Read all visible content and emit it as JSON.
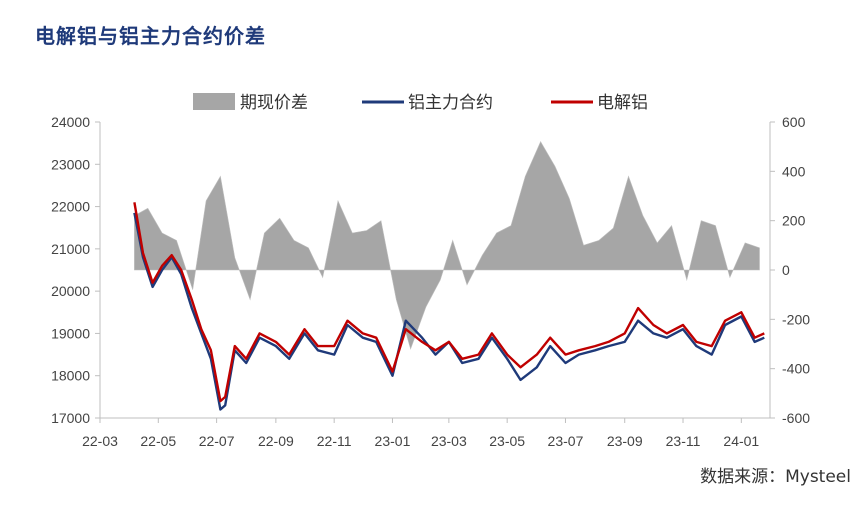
{
  "title": "电解铝与铝主力合约价差",
  "source": "数据来源：Mysteel",
  "colors": {
    "spread": "#a6a6a6",
    "futures": "#1f3a7a",
    "spot": "#c00000",
    "axis": "#bfbfbf"
  },
  "chart_data": {
    "type": "line",
    "x_ticks": [
      "22-03",
      "22-05",
      "22-07",
      "22-09",
      "22-11",
      "23-01",
      "23-03",
      "23-05",
      "23-07",
      "23-09",
      "23-11",
      "24-01"
    ],
    "x_range": [
      "2022-03-01",
      "2024-01-31"
    ],
    "y_left": {
      "ticks": [
        "24000",
        "23000",
        "22000",
        "21000",
        "20000",
        "19000",
        "18000",
        "17000"
      ],
      "range": [
        17000,
        24000
      ]
    },
    "y_right": {
      "ticks": [
        "600",
        "400",
        "200",
        "0",
        "-200",
        "-400",
        "-600"
      ],
      "range": [
        -600,
        600
      ]
    },
    "legend": [
      "期现价差",
      "铝主力合约",
      "电解铝"
    ],
    "series": [
      {
        "name": "期现价差",
        "kind": "area",
        "axis": "right",
        "x": [
          "2022-04-06",
          "2022-04-20",
          "2022-05-05",
          "2022-05-20",
          "2022-06-06",
          "2022-06-20",
          "2022-07-05",
          "2022-07-20",
          "2022-08-05",
          "2022-08-20",
          "2022-09-05",
          "2022-09-20",
          "2022-10-05",
          "2022-10-20",
          "2022-11-05",
          "2022-11-20",
          "2022-12-05",
          "2022-12-20",
          "2023-01-05",
          "2023-01-20",
          "2023-02-05",
          "2023-02-20",
          "2023-03-05",
          "2023-03-20",
          "2023-04-05",
          "2023-04-20",
          "2023-05-05",
          "2023-05-20",
          "2023-06-05",
          "2023-06-20",
          "2023-07-05",
          "2023-07-20",
          "2023-08-05",
          "2023-08-20",
          "2023-09-05",
          "2023-09-20",
          "2023-10-05",
          "2023-10-20",
          "2023-11-05",
          "2023-11-20",
          "2023-12-05",
          "2023-12-20",
          "2024-01-05",
          "2024-01-20"
        ],
        "values": [
          220,
          250,
          150,
          120,
          -80,
          280,
          380,
          50,
          -120,
          150,
          210,
          120,
          90,
          -30,
          280,
          150,
          160,
          200,
          -120,
          -320,
          -150,
          -40,
          120,
          -60,
          60,
          150,
          180,
          380,
          520,
          420,
          290,
          100,
          120,
          170,
          380,
          220,
          110,
          180,
          -40,
          200,
          180,
          -30,
          110,
          90
        ]
      },
      {
        "name": "铝主力合约",
        "kind": "line",
        "axis": "left",
        "x": [
          "2022-04-06",
          "2022-04-15",
          "2022-04-25",
          "2022-05-05",
          "2022-05-15",
          "2022-05-25",
          "2022-06-05",
          "2022-06-15",
          "2022-06-25",
          "2022-07-05",
          "2022-07-10",
          "2022-07-20",
          "2022-08-01",
          "2022-08-15",
          "2022-09-01",
          "2022-09-15",
          "2022-10-01",
          "2022-10-15",
          "2022-11-01",
          "2022-11-15",
          "2022-12-01",
          "2022-12-15",
          "2023-01-01",
          "2023-01-15",
          "2023-02-01",
          "2023-02-15",
          "2023-03-01",
          "2023-03-15",
          "2023-04-01",
          "2023-04-15",
          "2023-05-01",
          "2023-05-15",
          "2023-06-01",
          "2023-06-15",
          "2023-07-01",
          "2023-07-15",
          "2023-08-01",
          "2023-08-15",
          "2023-09-01",
          "2023-09-15",
          "2023-10-01",
          "2023-10-15",
          "2023-11-01",
          "2023-11-15",
          "2023-12-01",
          "2023-12-15",
          "2024-01-01",
          "2024-01-15",
          "2024-01-25"
        ],
        "values": [
          21850,
          20800,
          20100,
          20500,
          20800,
          20400,
          19600,
          19000,
          18400,
          17200,
          17300,
          18600,
          18300,
          18900,
          18700,
          18400,
          19000,
          18600,
          18500,
          19200,
          18900,
          18800,
          18000,
          19300,
          18900,
          18500,
          18800,
          18300,
          18400,
          18900,
          18400,
          17900,
          18200,
          18700,
          18300,
          18500,
          18600,
          18700,
          18800,
          19300,
          19000,
          18900,
          19100,
          18700,
          18500,
          19200,
          19400,
          18800,
          18900
        ]
      },
      {
        "name": "电解铝",
        "kind": "line",
        "axis": "left",
        "x": [
          "2022-04-06",
          "2022-04-15",
          "2022-04-25",
          "2022-05-05",
          "2022-05-15",
          "2022-05-25",
          "2022-06-05",
          "2022-06-15",
          "2022-06-25",
          "2022-07-05",
          "2022-07-10",
          "2022-07-20",
          "2022-08-01",
          "2022-08-15",
          "2022-09-01",
          "2022-09-15",
          "2022-10-01",
          "2022-10-15",
          "2022-11-01",
          "2022-11-15",
          "2022-12-01",
          "2022-12-15",
          "2023-01-01",
          "2023-01-15",
          "2023-02-01",
          "2023-02-15",
          "2023-03-01",
          "2023-03-15",
          "2023-04-01",
          "2023-04-15",
          "2023-05-01",
          "2023-05-15",
          "2023-06-01",
          "2023-06-15",
          "2023-07-01",
          "2023-07-15",
          "2023-08-01",
          "2023-08-15",
          "2023-09-01",
          "2023-09-15",
          "2023-10-01",
          "2023-10-15",
          "2023-11-01",
          "2023-11-15",
          "2023-12-01",
          "2023-12-15",
          "2024-01-01",
          "2024-01-15",
          "2024-01-25"
        ],
        "values": [
          22100,
          20900,
          20200,
          20600,
          20850,
          20500,
          19800,
          19100,
          18600,
          17400,
          17500,
          18700,
          18400,
          19000,
          18800,
          18500,
          19100,
          18700,
          18700,
          19300,
          19000,
          18900,
          18100,
          19100,
          18800,
          18600,
          18800,
          18400,
          18500,
          19000,
          18500,
          18200,
          18500,
          18900,
          18500,
          18600,
          18700,
          18800,
          19000,
          19600,
          19200,
          19000,
          19200,
          18800,
          18700,
          19300,
          19500,
          18900,
          19000
        ]
      }
    ]
  }
}
